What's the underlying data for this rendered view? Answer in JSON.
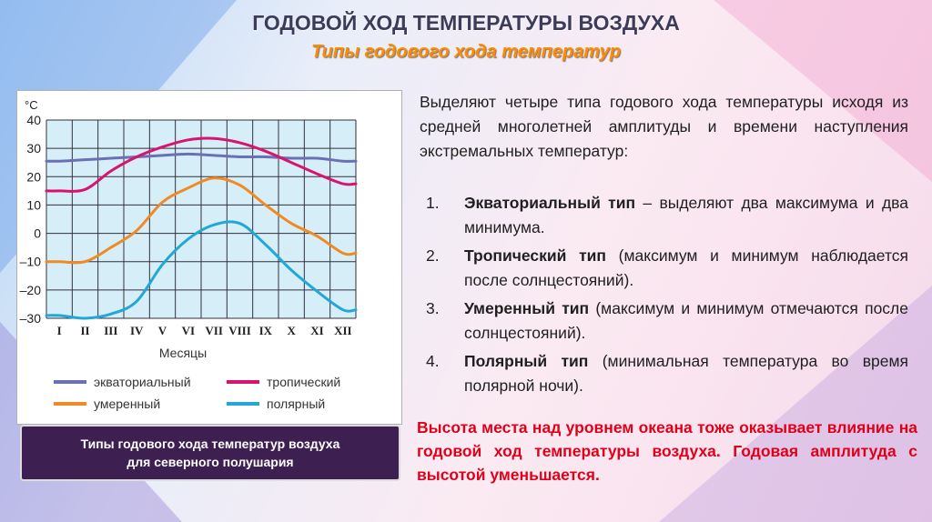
{
  "slide": {
    "title": "ГОДОВОЙ ХОД ТЕМПЕРАТУРЫ ВОЗДУХА",
    "subtitle": "Типы годового хода температур",
    "caption_line1": "Типы годового хода температур воздуха",
    "caption_line2": "для северного полушария",
    "intro": "Выделяют четыре типа годового хода температуры исходя из средней многолетней амплитуды и времени наступления экстремальных температур:",
    "types": [
      {
        "num": "1.",
        "name": "Экваториальный тип",
        "desc": " – выделяют два максимума и два минимума."
      },
      {
        "num": "2.",
        "name": "Тропический тип",
        "desc": " (максимум и минимум наблюдается после солнцестояний)."
      },
      {
        "num": "3.",
        "name": "Умеренный тип",
        "desc": " (максимум и минимум отмечаются после солнцестояний)."
      },
      {
        "num": "4.",
        "name": "Полярный тип",
        "desc": " (минимальная температура во время полярной ночи)."
      }
    ],
    "note": "Высота места над уровнем океана тоже оказывает влияние на годовой ход температуры воздуха. Годовая амплитуда с высотой уменьшается."
  },
  "chart_data": {
    "type": "line",
    "ylabel": "°C",
    "xlabel": "Месяцы",
    "ylim": [
      -30,
      40
    ],
    "y_ticks": [
      "40",
      "30",
      "20",
      "10",
      "0",
      "–10",
      "–20",
      "–30"
    ],
    "categories": [
      "I",
      "II",
      "III",
      "IV",
      "V",
      "VI",
      "VII",
      "VIII",
      "IX",
      "X",
      "XI",
      "XII"
    ],
    "grid": true,
    "series": [
      {
        "name": "экваториальный",
        "color": "#6b6fb8",
        "values": [
          25.5,
          26,
          26.5,
          27,
          27.5,
          28,
          27.5,
          27,
          27,
          26.5,
          26.5,
          25.5
        ]
      },
      {
        "name": "тропический",
        "color": "#d8146e",
        "values": [
          15,
          15.5,
          22,
          27,
          30.5,
          33,
          33.5,
          32,
          29,
          25,
          21,
          17.5
        ]
      },
      {
        "name": "умеренный",
        "color": "#ef8a25",
        "values": [
          -10,
          -10,
          -5,
          1,
          11,
          16,
          19.5,
          17,
          10,
          3.5,
          -1,
          -7
        ]
      },
      {
        "name": "полярный",
        "color": "#22a7d8",
        "values": [
          -29,
          -30,
          -28.5,
          -24,
          -11,
          -2,
          3,
          3.5,
          -4,
          -13,
          -20.5,
          -27
        ]
      }
    ]
  }
}
